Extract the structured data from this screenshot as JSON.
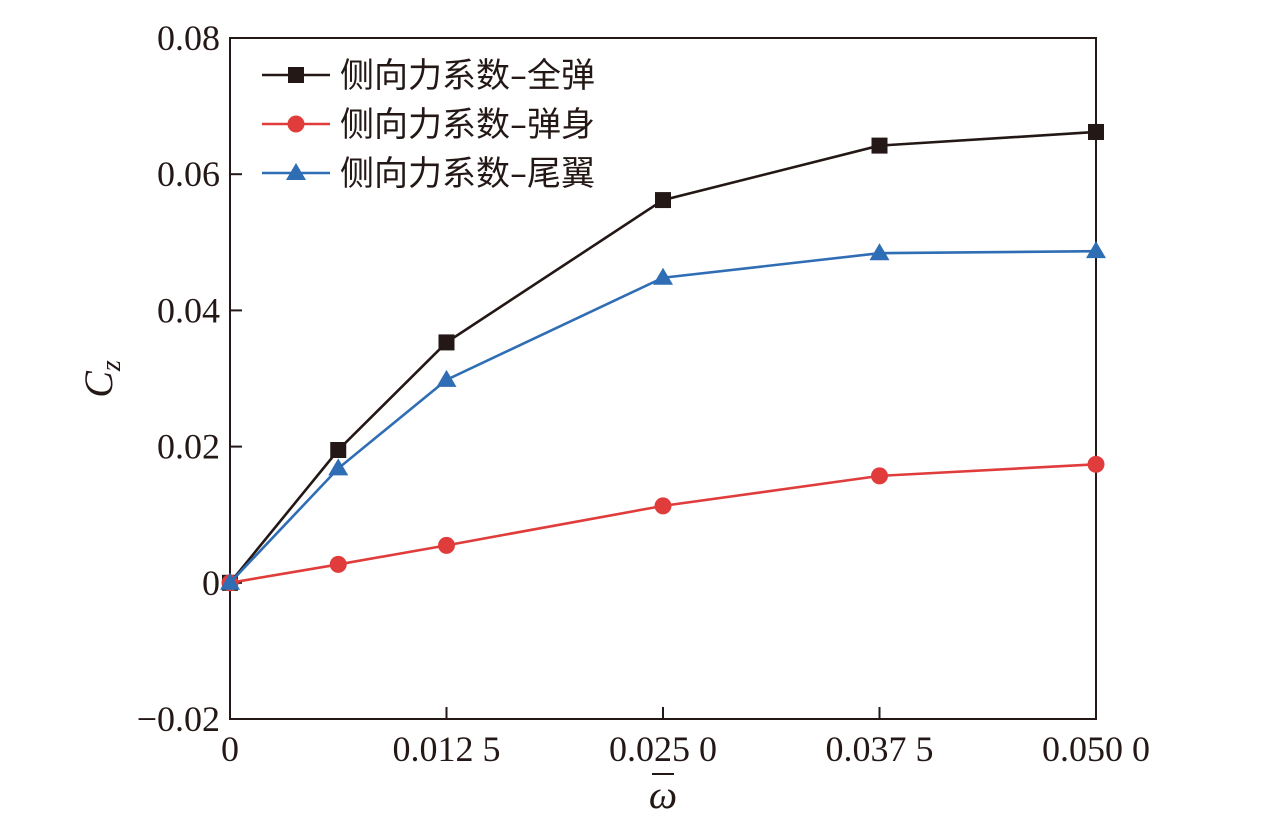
{
  "chart_data": {
    "type": "line",
    "x": [
      0,
      0.00625,
      0.0125,
      0.025,
      0.0375,
      0.05
    ],
    "x_ticks": [
      0,
      0.0125,
      0.025,
      0.0375,
      0.05
    ],
    "x_tick_labels": [
      "0",
      "0.012 5",
      "0.025 0",
      "0.037 5",
      "0.050 0"
    ],
    "y_ticks": [
      -0.02,
      0,
      0.02,
      0.04,
      0.06,
      0.08
    ],
    "y_tick_labels": [
      "−0.02",
      "0",
      "0.02",
      "0.04",
      "0.06",
      "0.08"
    ],
    "xlim": [
      0,
      0.05
    ],
    "ylim": [
      -0.02,
      0.08
    ],
    "xlabel": "ω",
    "ylabel": "C",
    "ylabel_sub": "z",
    "grid": false,
    "legend_position": "top-left",
    "series": [
      {
        "name": "侧向力系数–全弹",
        "color": "#231815",
        "marker": "square",
        "values": [
          0,
          0.0195,
          0.0353,
          0.0562,
          0.0642,
          0.0662
        ]
      },
      {
        "name": "侧向力系数–弹身",
        "color": "#e03c3c",
        "marker": "circle",
        "values": [
          0,
          0.0027,
          0.0055,
          0.0113,
          0.0157,
          0.0174
        ]
      },
      {
        "name": "侧向力系数–尾翼",
        "color": "#2f6db5",
        "marker": "triangle",
        "values": [
          0,
          0.0168,
          0.0298,
          0.0448,
          0.0484,
          0.0487
        ]
      }
    ]
  }
}
